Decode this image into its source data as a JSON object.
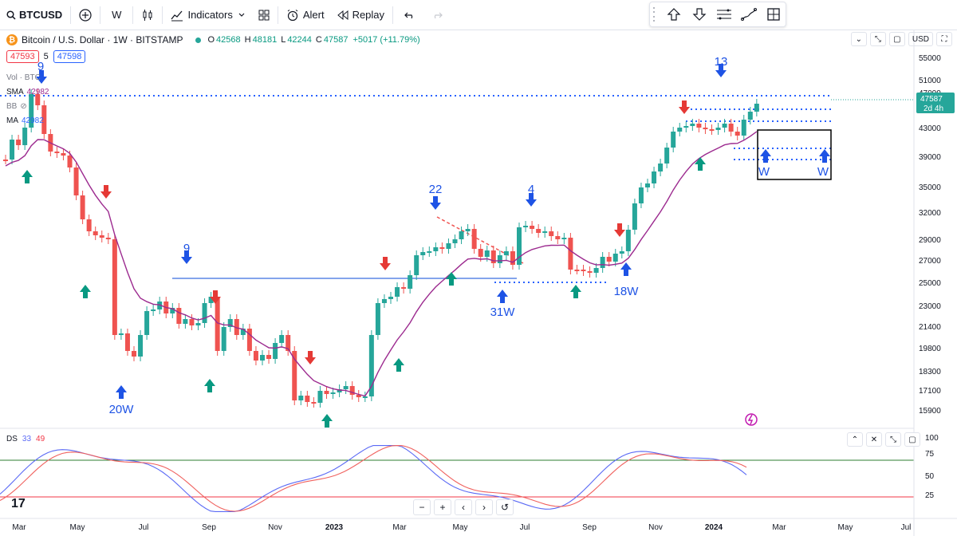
{
  "toolbar": {
    "symbol": "BTCUSD",
    "interval": "W",
    "indicators": "Indicators",
    "alert": "Alert",
    "replay": "Replay"
  },
  "legend": {
    "title": "Bitcoin / U.S. Dollar · 1W · BITSTAMP",
    "coin_letter": "₿",
    "ohlc": [
      {
        "k": "O",
        "v": "42568"
      },
      {
        "k": "H",
        "v": "48181"
      },
      {
        "k": "L",
        "v": "42244"
      },
      {
        "k": "C",
        "v": "47587"
      }
    ],
    "change": "+5017 (+11.79%)",
    "bid": "47593",
    "spread": "5",
    "ask": "47598",
    "indicators": [
      {
        "name": "Vol · BTC",
        "value": ""
      },
      {
        "name": "SMA",
        "value": "42982"
      },
      {
        "name": "BB",
        "value": ""
      },
      {
        "name": "MA",
        "value": "42982"
      }
    ]
  },
  "currency": "USD",
  "price_axis": [
    "55000",
    "51000",
    "47000",
    "43000",
    "39000",
    "35000",
    "32000",
    "29000",
    "27000",
    "25000",
    "23000",
    "21400",
    "19800",
    "18300",
    "17100",
    "15900"
  ],
  "current_price": {
    "value": "47587",
    "countdown": "2d 4h"
  },
  "time_axis": [
    "Mar",
    "May",
    "Jul",
    "Sep",
    "Nov",
    "2023",
    "Mar",
    "May",
    "Jul",
    "Sep",
    "Nov",
    "2024",
    "Mar",
    "May",
    "Jul"
  ],
  "annotations": [
    "9",
    "9",
    "22",
    "4",
    "13",
    "20W",
    "31W",
    "18W",
    "W",
    "W"
  ],
  "oscillator": {
    "name": "DS",
    "p1": "33",
    "p2": "49",
    "axis": [
      "100",
      "75",
      "50",
      "25"
    ],
    "colors": {
      "fast": "#5b6af5",
      "slow": "#f0615e",
      "upper": "#2e7d32",
      "lower": "#f23645"
    }
  },
  "colors": {
    "up": "#26a69a",
    "down": "#ef5350",
    "ma": "#9c2a8f",
    "accent": "#2962ff",
    "arrow_blue": "#1e53e5",
    "arrow_green": "#089981",
    "arrow_red": "#e53935"
  }
}
